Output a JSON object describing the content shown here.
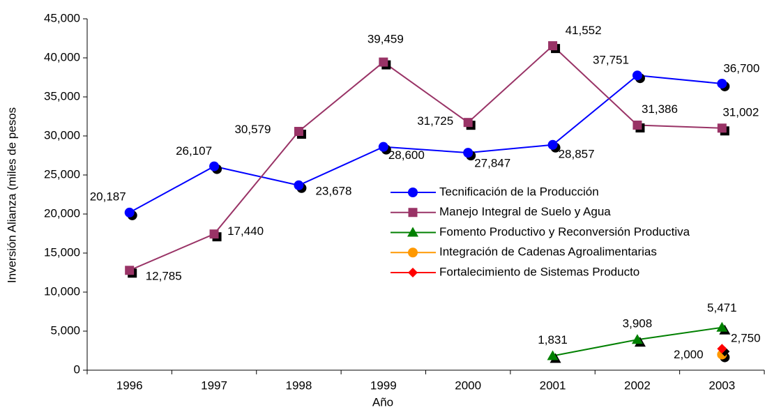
{
  "chart_data": {
    "type": "line",
    "xlabel": "Año",
    "ylabel": "Inversión Alianza (miles de pesos",
    "categories": [
      "1996",
      "1997",
      "1998",
      "1999",
      "2000",
      "2001",
      "2002",
      "2003"
    ],
    "ylim": [
      0,
      45000
    ],
    "yticks": [
      0,
      {
        "value": 5000,
        "label": "5,000"
      },
      {
        "value": 10000,
        "label": "10,000"
      },
      {
        "value": 15000,
        "label": "15,000"
      },
      {
        "value": 20000,
        "label": "20,000"
      },
      {
        "value": 25000,
        "label": "25,000"
      },
      {
        "value": 30000,
        "label": "30,000"
      },
      {
        "value": 35000,
        "label": "35,000"
      },
      {
        "value": 40000,
        "label": "40,000"
      },
      {
        "value": 45000,
        "label": "45,000"
      }
    ],
    "series": [
      {
        "name": "Tecnificación de la Producción",
        "color": "#0000ff",
        "marker": "circle",
        "values": [
          20187,
          26107,
          23678,
          28600,
          27847,
          28857,
          37751,
          36700
        ],
        "value_labels": [
          "20,187",
          "26,107",
          "23,678",
          "28,600",
          "27,847",
          "28,857",
          "37,751",
          "36,700"
        ]
      },
      {
        "name": "Manejo Integral de Suelo y Agua",
        "color": "#993366",
        "marker": "square",
        "values": [
          12785,
          17440,
          30579,
          39459,
          31725,
          41552,
          31386,
          31002
        ],
        "value_labels": [
          "12,785",
          "17,440",
          "30,579",
          "39,459",
          "31,725",
          "41,552",
          "31,386",
          "31,002"
        ]
      },
      {
        "name": "Fomento Productivo y Reconversión Productiva",
        "color": "#008000",
        "marker": "triangle",
        "values": [
          null,
          null,
          null,
          null,
          null,
          1831,
          3908,
          5471
        ],
        "value_labels": [
          null,
          null,
          null,
          null,
          null,
          "1,831",
          "3,908",
          "5,471"
        ]
      },
      {
        "name": "Integración de Cadenas Agroalimentarias",
        "color": "#ff9900",
        "marker": "circle",
        "values": [
          null,
          null,
          null,
          null,
          null,
          null,
          null,
          2000
        ],
        "value_labels": [
          null,
          null,
          null,
          null,
          null,
          null,
          null,
          "2,000"
        ]
      },
      {
        "name": "Fortalecimiento de Sistemas Producto",
        "color": "#ff0000",
        "marker": "diamond",
        "values": [
          null,
          null,
          null,
          null,
          null,
          null,
          null,
          2750
        ],
        "value_labels": [
          null,
          null,
          null,
          null,
          null,
          null,
          null,
          "2,750"
        ]
      }
    ]
  }
}
